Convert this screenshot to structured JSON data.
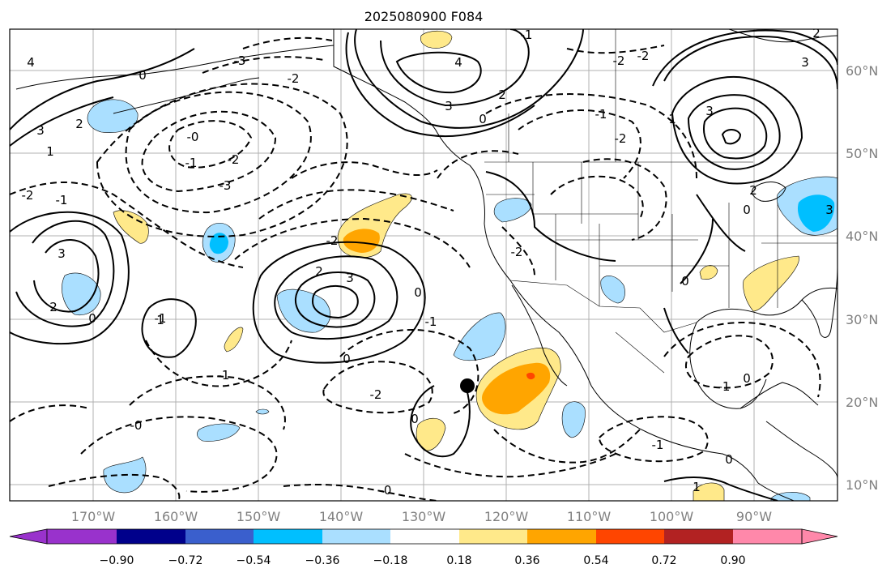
{
  "figure": {
    "title": "2025080900 F084"
  },
  "map": {
    "lon_labels": [
      "170°W",
      "160°W",
      "150°W",
      "140°W",
      "130°W",
      "120°W",
      "110°W",
      "100°W",
      "90°W"
    ],
    "lat_labels": [
      "60°N",
      "50°N",
      "40°N",
      "30°N",
      "20°N",
      "10°N"
    ],
    "contour_labels": {
      "c1": "4",
      "c2": "3",
      "c3": "2",
      "c4": "1",
      "c5": "0",
      "c6": "-0",
      "c7": "-1",
      "c8": "-2",
      "c9": "-3",
      "c10": "3",
      "c11": "2",
      "c12": "-1",
      "c13": "-2",
      "c14": "-3",
      "c15": "-2",
      "c16": "3",
      "c17": "2",
      "c18": "-2",
      "c19": "-1",
      "c20": "-0",
      "c21": "4",
      "c22": "3",
      "c23": "2",
      "c24": "-1",
      "c25": "-2",
      "c26": "3",
      "c27": "-2",
      "c28": "3",
      "c29": "2",
      "c30": "1",
      "c31": "0",
      "c32": "-1",
      "c33": "0",
      "c34": "-1",
      "c35": "0",
      "c36": "-2",
      "c37": "0",
      "c38": "-0",
      "c39": "-1",
      "c40": "1",
      "c41": "0",
      "c42": "-1",
      "c43": "0",
      "c44": "-1",
      "c45": "0",
      "c46": "1",
      "c47": "-2",
      "c48": "0",
      "c49": "0",
      "c50": "3",
      "c51": "2",
      "c52": "-2"
    },
    "marker": "filled-black-circle"
  },
  "colorbar": {
    "tick_labels": [
      "−0.90",
      "−0.72",
      "−0.54",
      "−0.36",
      "−0.18",
      "0.18",
      "0.36",
      "0.54",
      "0.72",
      "0.90"
    ],
    "colors": [
      "#9932cc",
      "#00008b",
      "#3a5fcd",
      "#00bfff",
      "#aadfff",
      "#ffffff",
      "#ffe98a",
      "#ffa500",
      "#ff4500",
      "#b22222",
      "#ff88aa"
    ]
  },
  "chart_data": {
    "type": "heatmap",
    "title": "2025080900 F084",
    "projection": "PlateCarree",
    "extent_lon": [
      -178,
      -78
    ],
    "extent_lat": [
      8,
      65
    ],
    "lon_ticks": [
      -170,
      -160,
      -150,
      -140,
      -130,
      -120,
      -110,
      -100,
      -90
    ],
    "lat_ticks": [
      10,
      20,
      30,
      40,
      50,
      60
    ],
    "grid": true,
    "colorbar_levels": [
      -0.9,
      -0.72,
      -0.54,
      -0.36,
      -0.18,
      0.18,
      0.36,
      0.54,
      0.72,
      0.9
    ],
    "colorbar_extend": "both",
    "contour_levels_labeled": [
      -3,
      -2,
      -1,
      0,
      1,
      2,
      3,
      4
    ],
    "marker_location": {
      "lon": -125,
      "lat": 22
    }
  }
}
